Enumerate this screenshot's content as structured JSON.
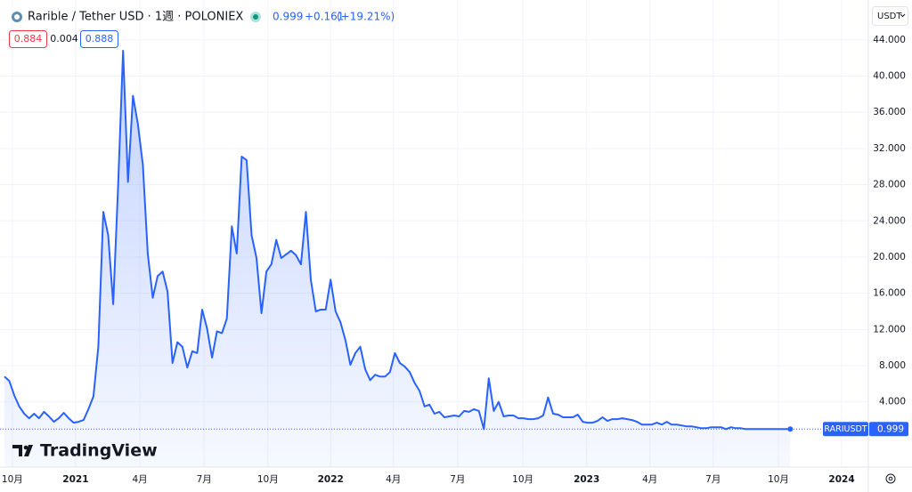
{
  "header": {
    "symbol": "Rarible / Tether USD · 1週 · POLONIEX",
    "last": "0.999",
    "change": "+0.161",
    "change_pct": "(+19.21%)",
    "bid": "0.884",
    "spread": "0.004",
    "ask": "0.888",
    "currency": "USDT",
    "ticker": "RARIUSDT",
    "brand": "TradingView"
  },
  "chart_data": {
    "type": "area",
    "color": "#2962ff",
    "values": [
      6.8,
      6.3,
      4.7,
      3.5,
      2.7,
      2.2,
      2.7,
      2.2,
      2.9,
      2.4,
      1.8,
      2.2,
      2.8,
      2.2,
      1.7,
      1.8,
      2.0,
      3.2,
      4.6,
      10.1,
      25.0,
      22.4,
      14.8,
      27.8,
      42.8,
      28.3,
      37.8,
      34.7,
      30.2,
      20.4,
      15.5,
      17.9,
      18.4,
      16.2,
      8.3,
      10.6,
      10.1,
      7.8,
      9.6,
      9.4,
      14.2,
      12.1,
      8.9,
      11.8,
      11.6,
      13.2,
      23.4,
      20.4,
      31.1,
      30.7,
      22.4,
      19.9,
      13.8,
      18.4,
      19.2,
      21.9,
      19.9,
      20.3,
      20.7,
      20.2,
      19.2,
      25.0,
      17.5,
      14.0,
      14.2,
      14.2,
      17.5,
      14.0,
      12.8,
      10.8,
      8.1,
      9.4,
      10.1,
      7.6,
      6.4,
      7.0,
      6.8,
      6.8,
      7.3,
      9.4,
      8.3,
      7.9,
      7.3,
      6.1,
      5.2,
      3.5,
      3.7,
      2.7,
      2.9,
      2.3,
      2.4,
      2.5,
      2.4,
      3.0,
      2.9,
      3.2,
      3.0,
      1.0,
      6.6,
      3.0,
      4.0,
      2.4,
      2.5,
      2.5,
      2.2,
      2.2,
      2.1,
      2.1,
      2.2,
      2.5,
      4.5,
      2.7,
      2.6,
      2.3,
      2.3,
      2.3,
      2.6,
      1.8,
      1.7,
      1.7,
      1.9,
      2.3,
      1.9,
      2.1,
      2.1,
      2.2,
      2.1,
      2.0,
      1.8,
      1.5,
      1.5,
      1.5,
      1.7,
      1.5,
      1.8,
      1.5,
      1.5,
      1.4,
      1.3,
      1.3,
      1.2,
      1.1,
      1.1,
      1.2,
      1.2,
      1.2,
      1.0,
      1.2,
      1.1,
      1.1,
      1.0,
      1.0,
      1.0,
      1.0,
      1.0,
      1.0,
      1.0,
      1.0,
      1.0,
      0.999
    ],
    "xlim": [
      -0.9,
      174.8
    ],
    "xticks": [
      {
        "value": 1.6,
        "label": "10月"
      },
      {
        "value": 14.4,
        "label": "2021"
      },
      {
        "value": 27.4,
        "label": "4月"
      },
      {
        "value": 40.4,
        "label": "7月"
      },
      {
        "value": 53.3,
        "label": "10月"
      },
      {
        "value": 66,
        "label": "2022"
      },
      {
        "value": 78.7,
        "label": "4月"
      },
      {
        "value": 91.7,
        "label": "7月"
      },
      {
        "value": 104.9,
        "label": "10月"
      },
      {
        "value": 117.8,
        "label": "2023"
      },
      {
        "value": 130.6,
        "label": "4月"
      },
      {
        "value": 143.4,
        "label": "7月"
      },
      {
        "value": 156.6,
        "label": "10月"
      },
      {
        "value": 169.4,
        "label": "2024"
      }
    ],
    "ylim": [
      -3.2,
      48.4
    ],
    "yticks": [
      {
        "value": 4,
        "label": "4.000"
      },
      {
        "value": 8,
        "label": "8.000"
      },
      {
        "value": 12,
        "label": "12.000"
      },
      {
        "value": 16,
        "label": "16.000"
      },
      {
        "value": 20,
        "label": "20.000"
      },
      {
        "value": 24,
        "label": "24.000"
      },
      {
        "value": 28,
        "label": "28.000"
      },
      {
        "value": 32,
        "label": "32.000"
      },
      {
        "value": 36,
        "label": "36.000"
      },
      {
        "value": 40,
        "label": "40.000"
      },
      {
        "value": 44,
        "label": "44.000"
      }
    ],
    "grid": true
  }
}
